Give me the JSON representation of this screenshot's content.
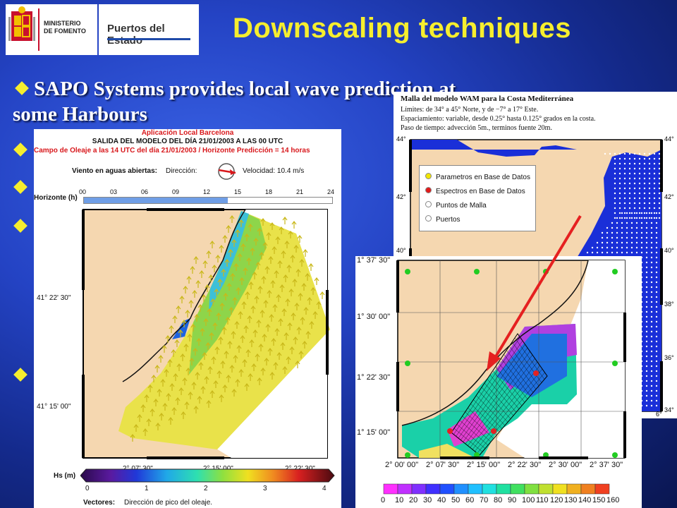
{
  "header": {
    "ministerio_logo_lines": [
      "MINISTERIO",
      "DE FOMENTO"
    ],
    "puertos_logo_text": "Puertos del Estado",
    "title": "Downscaling techniques"
  },
  "bullet": {
    "line1": "SAPO Systems provides local wave prediction at",
    "line2": "some Harbours"
  },
  "left_panel": {
    "app_title": "Aplicación Local Barcelona",
    "subtitle": "SALIDA DEL MODELO DEL DÍA 21/01/2003 A LAS 00 UTC",
    "field_line": "Campo de Oleaje a las 14 UTC del día 21/01/2003 / Horizonte Predicción = 14 horas",
    "wind_label": "Viento en aguas abiertas:",
    "direction_label": "Dirección:",
    "speed_label": "Velocidad: 10.4 m/s",
    "horizon_label": "Horizonte (h)",
    "horizon_ticks": [
      "00",
      "03",
      "06",
      "09",
      "12",
      "15",
      "18",
      "21",
      "24"
    ],
    "horizon_progress": 0.58,
    "lat_ticks": [
      "41° 22' 30\"",
      "41° 15' 00\""
    ],
    "lon_ticks": [
      "2° 07' 30\"",
      "2° 15' 00\"",
      "2° 22' 30\""
    ],
    "colorbar_label": "Hs (m)",
    "colorbar_ticks": [
      "0",
      "1",
      "2",
      "3",
      "4"
    ],
    "vectors_label": "Vectores:",
    "vectors_desc": "Dirección de pico del oleaje."
  },
  "right_panel": {
    "title": "Malla del modelo WAM para la Costa Mediterránea",
    "line1": "Límites: de 34° a 45° Norte, y de −7° a 17° Este.",
    "line2": "Espaciamiento: variable, desde 0.25° hasta 0.125° grados en la costa.",
    "line3": "Paso de tiempo: advección 5m., terminos fuente 20m.",
    "legend": [
      {
        "label": "Parametros en Base de Datos",
        "color": "#f2e600"
      },
      {
        "label": "Espectros en Base de Datos",
        "color": "#e21a1a"
      },
      {
        "label": "Puntos de Malla",
        "color": "#ffffff"
      },
      {
        "label": "Puertos",
        "color": "#ffffff"
      }
    ],
    "lat_ticks": [
      "44°",
      "42°",
      "40°",
      "38°",
      "36°",
      "34°"
    ],
    "right_lat_ticks": [
      "44°",
      "42°",
      "40°",
      "38°",
      "36°",
      "34°"
    ],
    "lon_tick": "6°"
  },
  "inset": {
    "lat_ticks": [
      "1° 37' 30\"",
      "1° 30' 00\"",
      "1° 22' 30\"",
      "1° 15' 00\""
    ],
    "lon_ticks": [
      "2° 00' 00\"",
      "2° 07' 30\"",
      "2° 15' 00\"",
      "2° 22' 30\"",
      "2° 30' 00\"",
      "2° 37' 30\""
    ],
    "colorbar_ticks": [
      "0",
      "10",
      "20",
      "30",
      "40",
      "50",
      "60",
      "70",
      "80",
      "90",
      "100",
      "110",
      "120",
      "130",
      "140",
      "150",
      "160"
    ]
  },
  "colors": {
    "title": "#f6ee2e",
    "bullet": "#f6ee2e",
    "land": "#f5d7b0",
    "sea_deep": "#1a2fd8",
    "arrow": "#e52020"
  }
}
